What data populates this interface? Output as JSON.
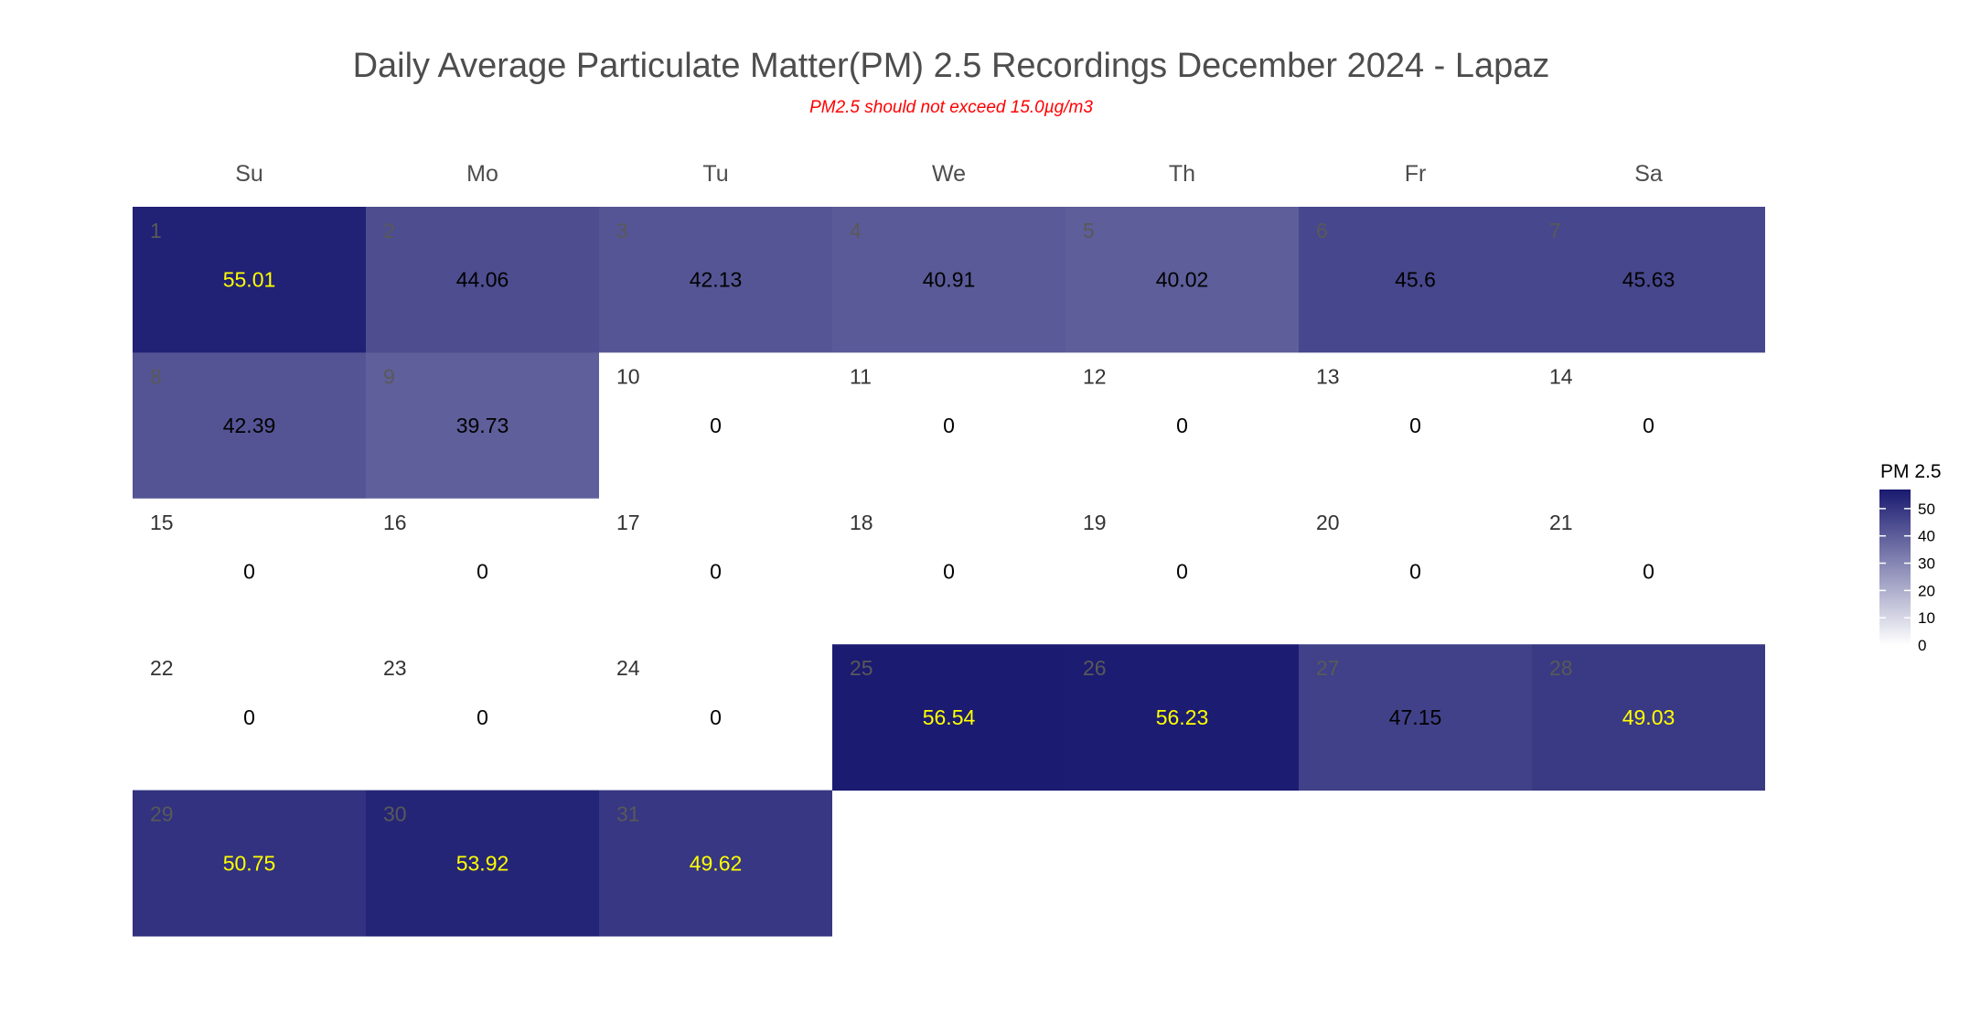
{
  "chart_data": {
    "type": "heatmap",
    "title": "Daily Average Particulate Matter(PM) 2.5 Recordings December 2024 -  Lapaz",
    "subtitle": "PM2.5 should not exceed 15.0µg/m3",
    "weekdays": [
      "Su",
      "Mo",
      "Tu",
      "We",
      "Th",
      "Fr",
      "Sa"
    ],
    "month_start_weekday": 0,
    "days": [
      1,
      2,
      3,
      4,
      5,
      6,
      7,
      8,
      9,
      10,
      11,
      12,
      13,
      14,
      15,
      16,
      17,
      18,
      19,
      20,
      21,
      22,
      23,
      24,
      25,
      26,
      27,
      28,
      29,
      30,
      31
    ],
    "values": [
      55.01,
      44.06,
      42.13,
      40.91,
      40.02,
      45.6,
      45.63,
      42.39,
      39.73,
      0,
      0,
      0,
      0,
      0,
      0,
      0,
      0,
      0,
      0,
      0,
      0,
      0,
      0,
      0,
      56.54,
      56.23,
      47.15,
      49.03,
      50.75,
      53.92,
      49.62
    ],
    "value_labels": [
      "55.01",
      "44.06",
      "42.13",
      "40.91",
      "40.02",
      "45.6",
      "45.63",
      "42.39",
      "39.73",
      "0",
      "0",
      "0",
      "0",
      "0",
      "0",
      "0",
      "0",
      "0",
      "0",
      "0",
      "0",
      "0",
      "0",
      "0",
      "56.54",
      "56.23",
      "47.15",
      "49.03",
      "50.75",
      "53.92",
      "49.62"
    ],
    "label_highlight_threshold": 48,
    "label_color_high": "#ffff00",
    "label_color_normal": "#000000",
    "daynum_color_filled": "#595959",
    "daynum_color_empty": "#333333",
    "legend": {
      "title": "PM 2.5",
      "ticks": [
        0,
        10,
        20,
        30,
        40,
        50
      ],
      "range": [
        0,
        57
      ],
      "position": "right"
    },
    "color_scale": {
      "low": "#ffffff",
      "high": "#191970"
    }
  }
}
